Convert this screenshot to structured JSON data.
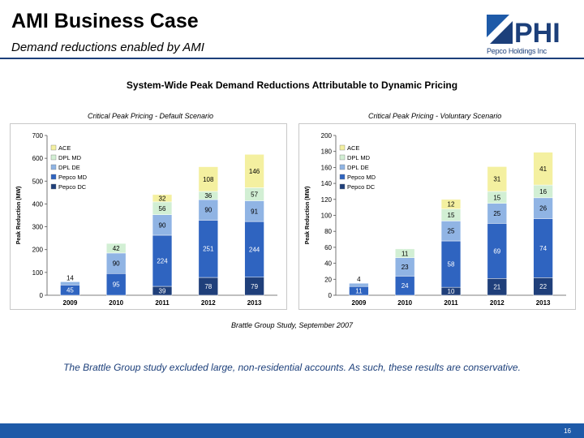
{
  "header": {
    "title": "AMI Business Case",
    "subtitle": "Demand reductions enabled by AMI"
  },
  "logo": {
    "text": "PHI",
    "tagline": "Pepco Holdings Inc"
  },
  "main_title": "System-Wide Peak Demand Reductions Attributable to Dynamic Pricing",
  "source_note": "Brattle Group Study, September 2007",
  "footnote": "The Brattle Group study excluded large, non-residential accounts.  As such, these results are conservative.",
  "page_number": "16",
  "colors": {
    "Pepco DC": "#1f3f7a",
    "Pepco MD": "#2f64c0",
    "DPL DE": "#90b4e4",
    "DPL MD": "#d2efd4",
    "ACE": "#f4f0a0",
    "accent": "#1c3f7a",
    "footer": "#1e5aa8"
  },
  "chart_data": [
    {
      "type": "bar",
      "stacked": true,
      "title": "Critical Peak Pricing - Default Scenario",
      "ylabel": "Peak Reduction (MW)",
      "categories": [
        "2009",
        "2010",
        "2011",
        "2012",
        "2013"
      ],
      "ylim": [
        0,
        700
      ],
      "yticks": [
        0,
        100,
        200,
        300,
        400,
        500,
        600,
        700
      ],
      "legend": "top-left",
      "legend_order": [
        "ACE",
        "DPL MD",
        "DPL DE",
        "Pepco MD",
        "Pepco DC"
      ],
      "series": [
        {
          "name": "Pepco DC",
          "values": [
            0,
            0,
            39,
            78,
            79
          ],
          "labels": [
            "",
            "",
            "39",
            "78",
            "79"
          ]
        },
        {
          "name": "Pepco MD",
          "values": [
            45,
            95,
            224,
            251,
            244
          ],
          "labels": [
            "45",
            "95",
            "224",
            "251",
            "244"
          ]
        },
        {
          "name": "DPL DE",
          "values": [
            14,
            90,
            90,
            90,
            91
          ],
          "labels": [
            "14",
            "90",
            "90",
            "90",
            "91"
          ]
        },
        {
          "name": "DPL MD",
          "values": [
            0,
            42,
            56,
            36,
            57
          ],
          "labels": [
            "",
            "42",
            "56",
            "36",
            "57"
          ]
        },
        {
          "name": "ACE",
          "values": [
            0,
            0,
            32,
            108,
            146
          ],
          "labels": [
            "",
            "",
            "32",
            "108",
            "146"
          ]
        }
      ]
    },
    {
      "type": "bar",
      "stacked": true,
      "title": "Critical Peak Pricing - Voluntary Scenario",
      "ylabel": "Peak Reduction (MW)",
      "categories": [
        "2009",
        "2010",
        "2011",
        "2012",
        "2013"
      ],
      "ylim": [
        0,
        200
      ],
      "yticks": [
        0,
        20,
        40,
        60,
        80,
        100,
        120,
        140,
        160,
        180,
        200
      ],
      "legend": "top-left",
      "legend_order": [
        "ACE",
        "DPL MD",
        "DPL DE",
        "Pepco MD",
        "Pepco DC"
      ],
      "series": [
        {
          "name": "Pepco DC",
          "values": [
            0,
            0,
            10,
            21,
            22
          ],
          "labels": [
            "",
            "",
            "10",
            "21",
            "22"
          ]
        },
        {
          "name": "Pepco MD",
          "values": [
            11,
            24,
            58,
            69,
            74
          ],
          "labels": [
            "11",
            "24",
            "58",
            "69",
            "74"
          ]
        },
        {
          "name": "DPL DE",
          "values": [
            4,
            23,
            25,
            25,
            26
          ],
          "labels": [
            "4",
            "23",
            "25",
            "25",
            "26"
          ]
        },
        {
          "name": "DPL MD",
          "values": [
            0,
            11,
            15,
            15,
            16
          ],
          "labels": [
            "",
            "11",
            "15",
            "15",
            "16"
          ]
        },
        {
          "name": "ACE",
          "values": [
            0,
            0,
            12,
            31,
            41
          ],
          "labels": [
            "",
            "",
            "12",
            "31",
            "41"
          ]
        }
      ]
    }
  ]
}
